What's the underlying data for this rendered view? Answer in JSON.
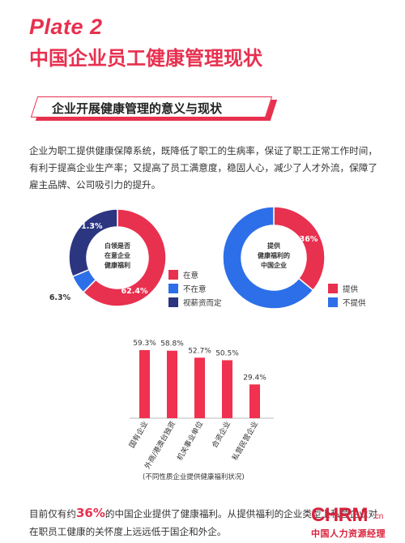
{
  "header": {
    "plate": "Plate 2",
    "title": "中国企业员工健康管理现状"
  },
  "section": {
    "banner": "企业开展健康管理的意义与现状",
    "intro": "企业为职工提供健康保障系统，既降低了职工的生病率，保证了职工正常工作时间，有利于提高企业生产率；又提高了员工满意度，稳固人心，减少了人才外流，保障了雇主品牌、公司吸引力的提升。"
  },
  "colors": {
    "accent": "#e8304f",
    "blue": "#2c6fe8",
    "navy": "#2c3580",
    "bar": "#f0314f"
  },
  "chart_data": [
    {
      "type": "pie",
      "title": "白领是否在意企业健康福利",
      "center_lines": [
        "白领是否",
        "在意企业",
        "健康福利"
      ],
      "slices": [
        {
          "name": "在意",
          "value": 62.4,
          "label": "62.4%",
          "color": "#e8304f"
        },
        {
          "name": "不在意",
          "value": 6.3,
          "label": "6.3%",
          "color": "#2c6fe8"
        },
        {
          "name": "视薪资而定",
          "value": 31.3,
          "label": "31.3%",
          "color": "#2c3580"
        }
      ],
      "legend_position": "right"
    },
    {
      "type": "pie",
      "title": "提供健康福利的中国企业",
      "center_lines": [
        "提供",
        "健康福利的",
        "中国企业"
      ],
      "slices": [
        {
          "name": "提供",
          "value": 36,
          "label": "36%",
          "color": "#e8304f"
        },
        {
          "name": "不提供",
          "value": 64,
          "label": "",
          "color": "#2c6fe8"
        }
      ],
      "legend_position": "right"
    },
    {
      "type": "bar",
      "categories": [
        "国有企业",
        "外商/港澳台独资",
        "机关事业单位",
        "合资企业",
        "私营民营企业"
      ],
      "values": [
        59.3,
        58.8,
        52.7,
        50.5,
        29.4
      ],
      "value_labels": [
        "59.3%",
        "58.8%",
        "52.7%",
        "50.5%",
        "29.4%"
      ],
      "ylim": [
        0,
        65
      ],
      "caption": "(不同性质企业提供健康福利状况)",
      "grid": false
    }
  ],
  "footer": {
    "before": "目前仅有约",
    "highlight": "36%",
    "after": "的中国企业提供了健康福利。从提供福利的企业类型上私营企业对在职员工健康的关怀度上远远低于国企和外企。"
  },
  "logo": {
    "mark": "CHRM",
    "domain": ".cn",
    "cn": "中国人力资源经理"
  }
}
